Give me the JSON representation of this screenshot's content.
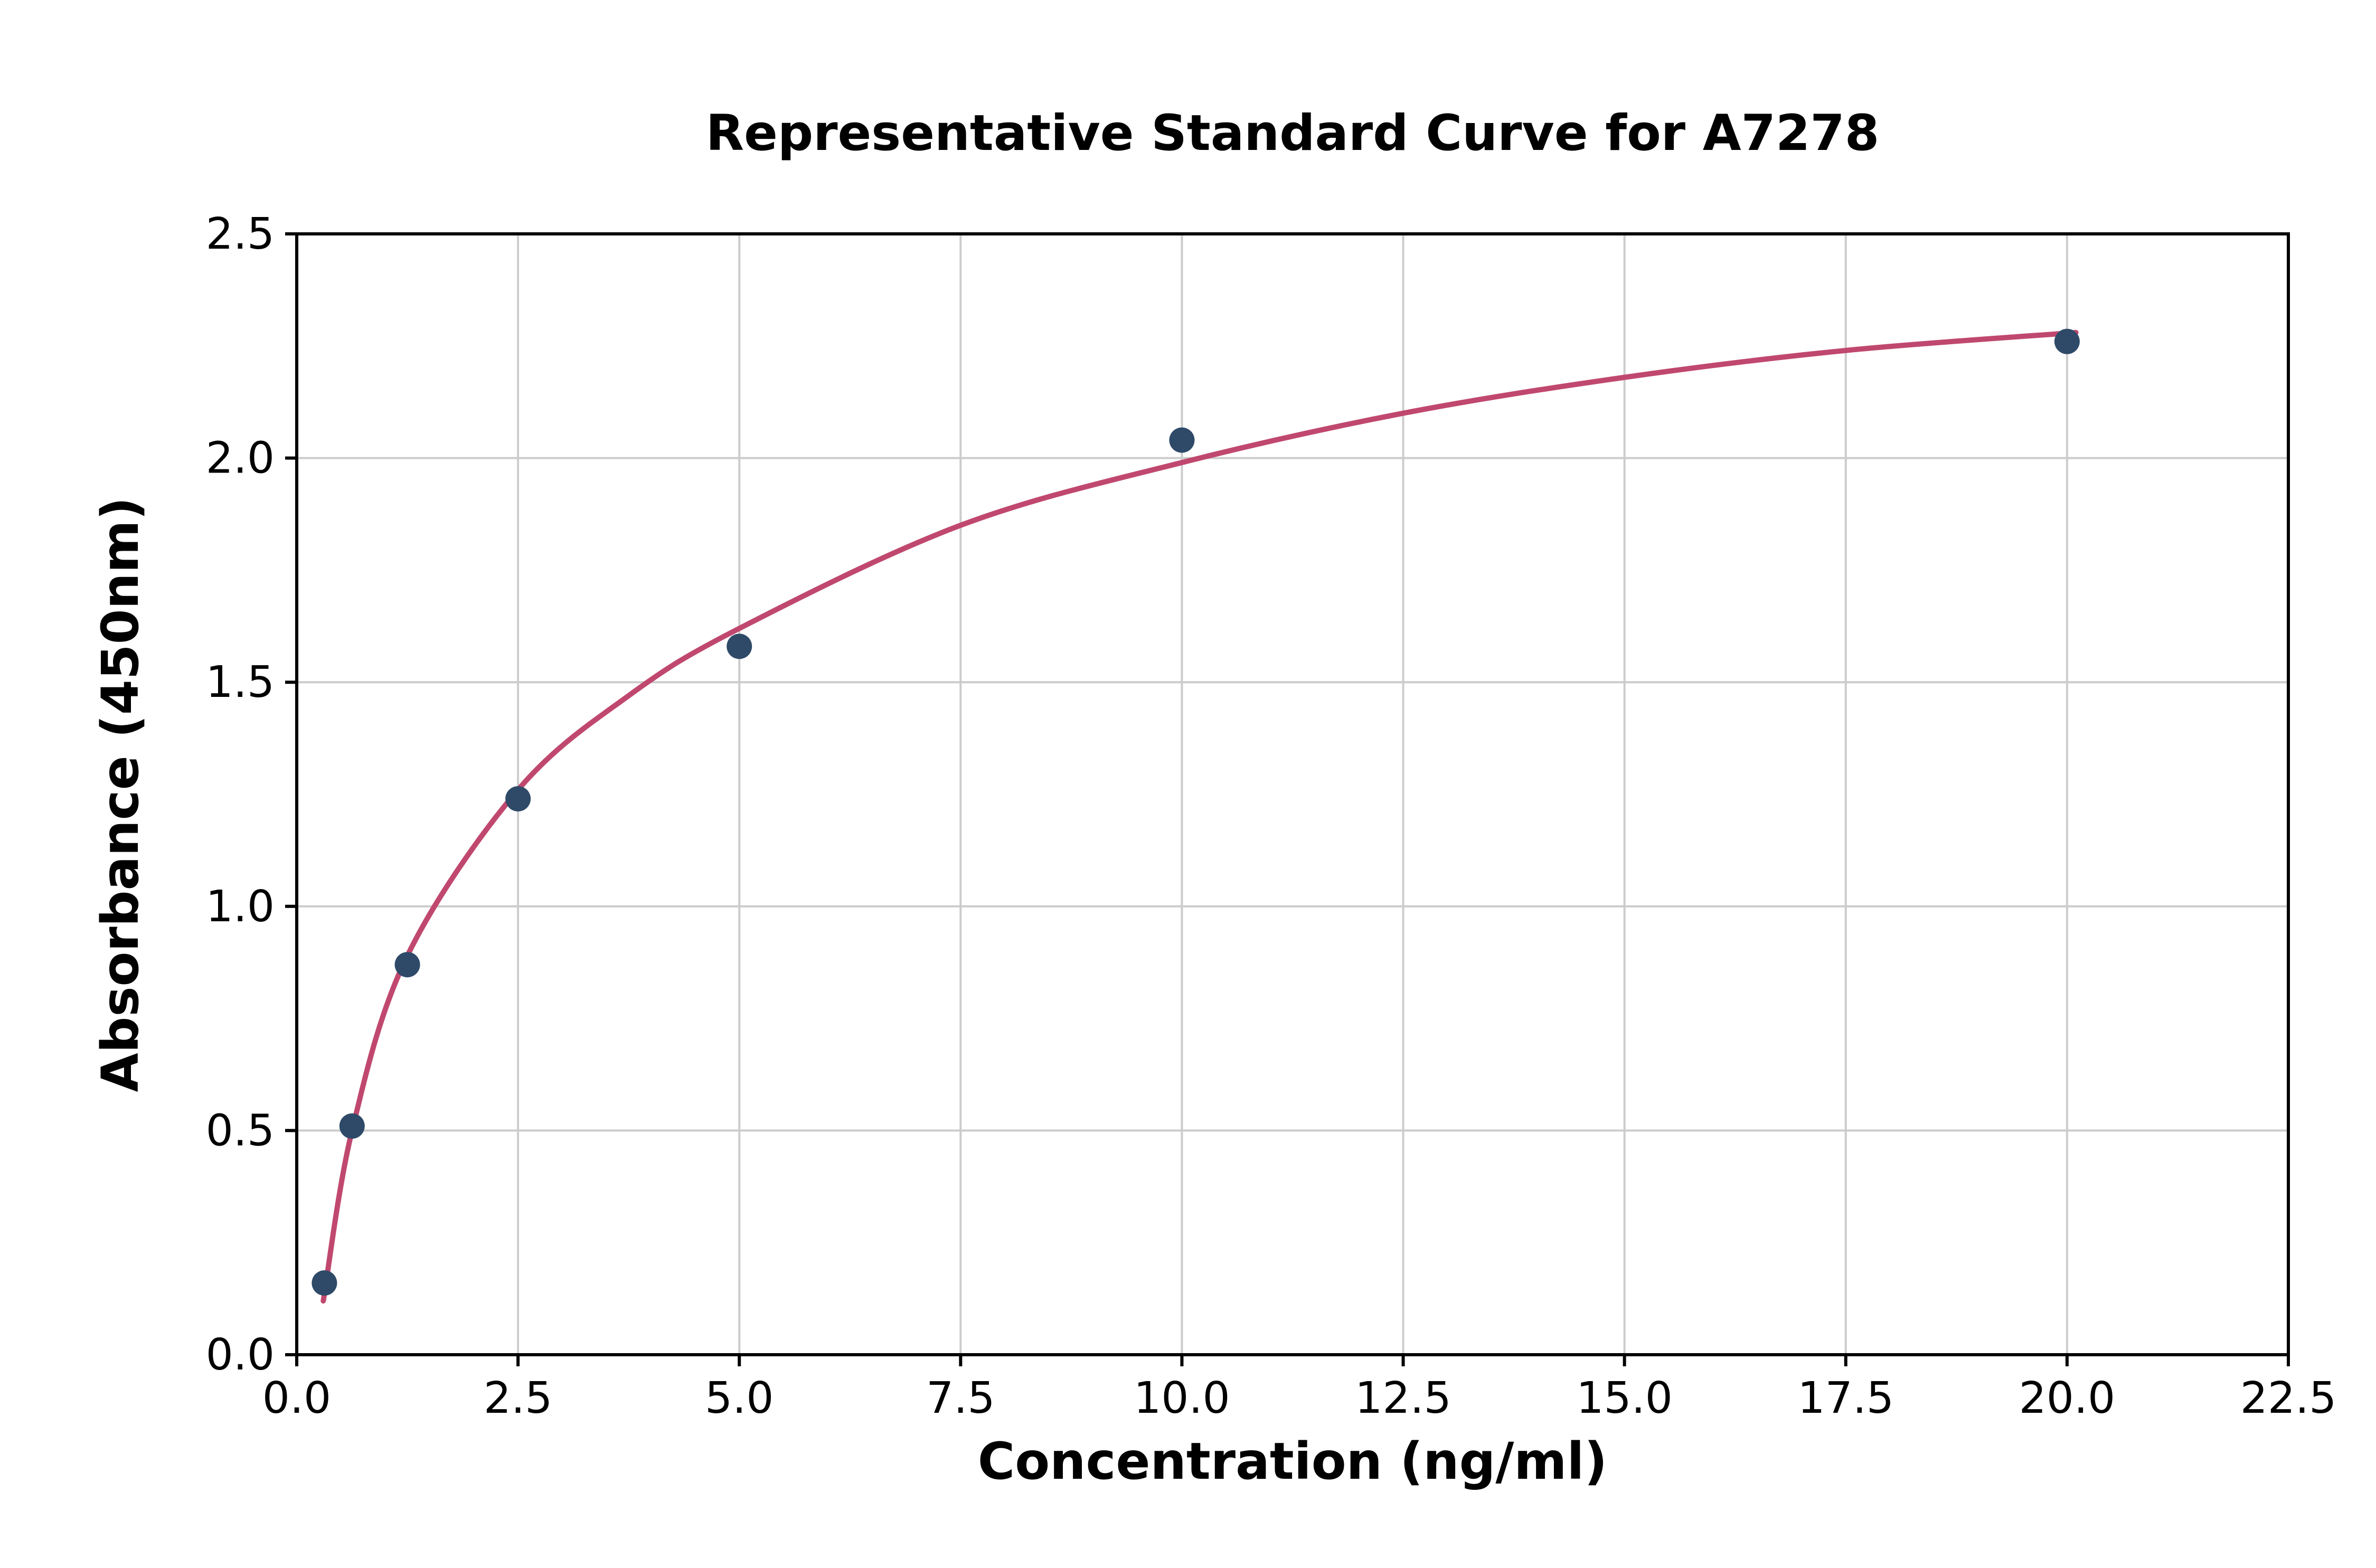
{
  "chart_data": {
    "type": "scatter",
    "title": "Representative Standard Curve for A7278",
    "xlabel": "Concentration (ng/ml)",
    "ylabel": "Absorbance (450nm)",
    "xlim": [
      0,
      22.5
    ],
    "ylim": [
      0,
      2.5
    ],
    "grid": true,
    "legend": "none",
    "x_tick_values": [
      0,
      2.5,
      5,
      7.5,
      10,
      12.5,
      15,
      17.5,
      20,
      22.5
    ],
    "x_tick_labels": [
      "0.0",
      "2.5",
      "5.0",
      "7.5",
      "10.0",
      "12.5",
      "15.0",
      "17.5",
      "20.0",
      "22.5"
    ],
    "y_tick_values": [
      0,
      0.5,
      1,
      1.5,
      2,
      2.5
    ],
    "y_tick_labels": [
      "0.0",
      "0.5",
      "1.0",
      "1.5",
      "2.0",
      "2.5"
    ],
    "points": [
      {
        "x": 0.3125,
        "y": 0.16
      },
      {
        "x": 0.625,
        "y": 0.51
      },
      {
        "x": 1.25,
        "y": 0.87
      },
      {
        "x": 2.5,
        "y": 1.24
      },
      {
        "x": 5,
        "y": 1.58
      },
      {
        "x": 10,
        "y": 2.04
      },
      {
        "x": 20,
        "y": 2.26
      }
    ],
    "fitted_curve_points": [
      {
        "x": 0.3,
        "y": 0.12
      },
      {
        "x": 0.625,
        "y": 0.5
      },
      {
        "x": 1.25,
        "y": 0.89
      },
      {
        "x": 2.5,
        "y": 1.26
      },
      {
        "x": 3.75,
        "y": 1.47
      },
      {
        "x": 5,
        "y": 1.62
      },
      {
        "x": 7.5,
        "y": 1.85
      },
      {
        "x": 10,
        "y": 1.99
      },
      {
        "x": 12.5,
        "y": 2.1
      },
      {
        "x": 15,
        "y": 2.18
      },
      {
        "x": 17.5,
        "y": 2.24
      },
      {
        "x": 20.1,
        "y": 2.28
      }
    ],
    "colors": {
      "point": "#2e4a68",
      "curve": "#c0486f",
      "grid": "#cccccc",
      "axis": "#000000",
      "background": "#ffffff"
    }
  }
}
